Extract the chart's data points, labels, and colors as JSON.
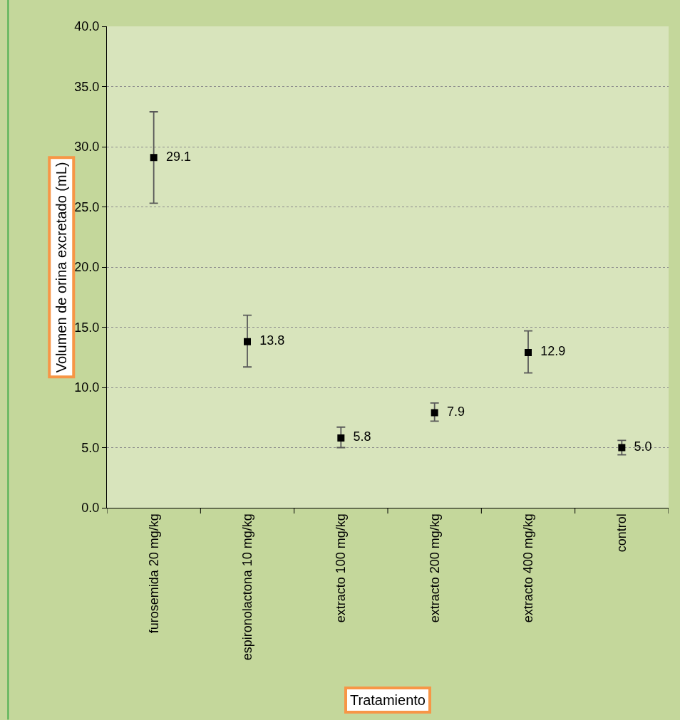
{
  "chart_data": {
    "type": "scatter",
    "xlabel": "Tratamiento",
    "ylabel": "Volumen de orina excretado (mL)",
    "categories": [
      "furosemida 20 mg/kg",
      "espironolactona 10 mg/kg",
      "extracto 100 mg/kg",
      "extracto 200 mg/kg",
      "extracto 400 mg/kg",
      "control"
    ],
    "values": [
      29.1,
      13.8,
      5.8,
      7.9,
      12.9,
      5.0
    ],
    "value_labels": [
      "29.1",
      "13.8",
      "5.8",
      "7.9",
      "12.9",
      "5.0"
    ],
    "errors": [
      [
        25.3,
        32.9
      ],
      [
        11.7,
        16.0
      ],
      [
        5.0,
        6.7
      ],
      [
        7.2,
        8.7
      ],
      [
        11.2,
        14.7
      ],
      [
        4.4,
        5.6
      ]
    ],
    "color": "#000000",
    "marker": "square",
    "ylim": [
      0,
      40
    ],
    "yticks": [
      {
        "value": 0,
        "label": "0.0"
      },
      {
        "value": 5,
        "label": "5.0"
      },
      {
        "value": 10,
        "label": "10.0"
      },
      {
        "value": 15,
        "label": "15.0"
      },
      {
        "value": 20,
        "label": "20.0"
      },
      {
        "value": 25,
        "label": "25.0"
      },
      {
        "value": 30,
        "label": "30.0"
      },
      {
        "value": 35,
        "label": "35.0"
      },
      {
        "value": 40,
        "label": "40.0"
      }
    ],
    "grid": "y",
    "legend": false
  }
}
